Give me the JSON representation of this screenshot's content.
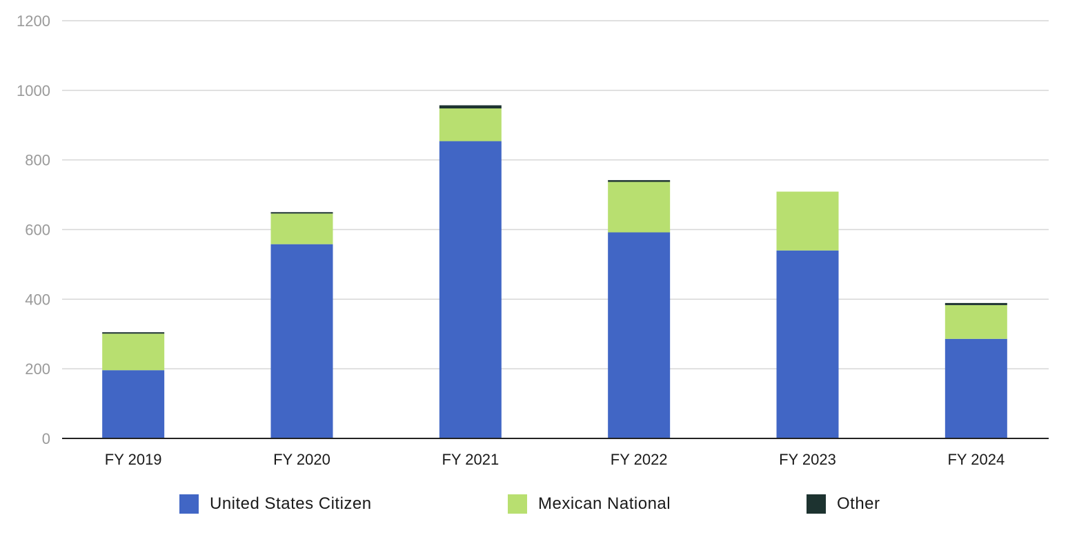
{
  "chart_data": {
    "type": "bar",
    "stacked": true,
    "categories": [
      "FY 2019",
      "FY 2020",
      "FY 2021",
      "FY 2022",
      "FY 2023",
      "FY 2024"
    ],
    "series": [
      {
        "name": "United States Citizen",
        "color": "#4166c5",
        "values": [
          196,
          558,
          854,
          592,
          540,
          286
        ]
      },
      {
        "name": "Mexican National",
        "color": "#b8df70",
        "values": [
          105,
          88,
          94,
          145,
          169,
          97
        ]
      },
      {
        "name": "Other",
        "color": "#1d3330",
        "values": [
          4,
          4,
          9,
          5,
          0,
          6
        ]
      }
    ],
    "ylim": [
      0,
      1200
    ],
    "yticks": [
      "0",
      "200",
      "400",
      "600",
      "800",
      "1000",
      "1200"
    ],
    "grid": true,
    "legend_position": "bottom",
    "title": "",
    "xlabel": "",
    "ylabel": ""
  }
}
